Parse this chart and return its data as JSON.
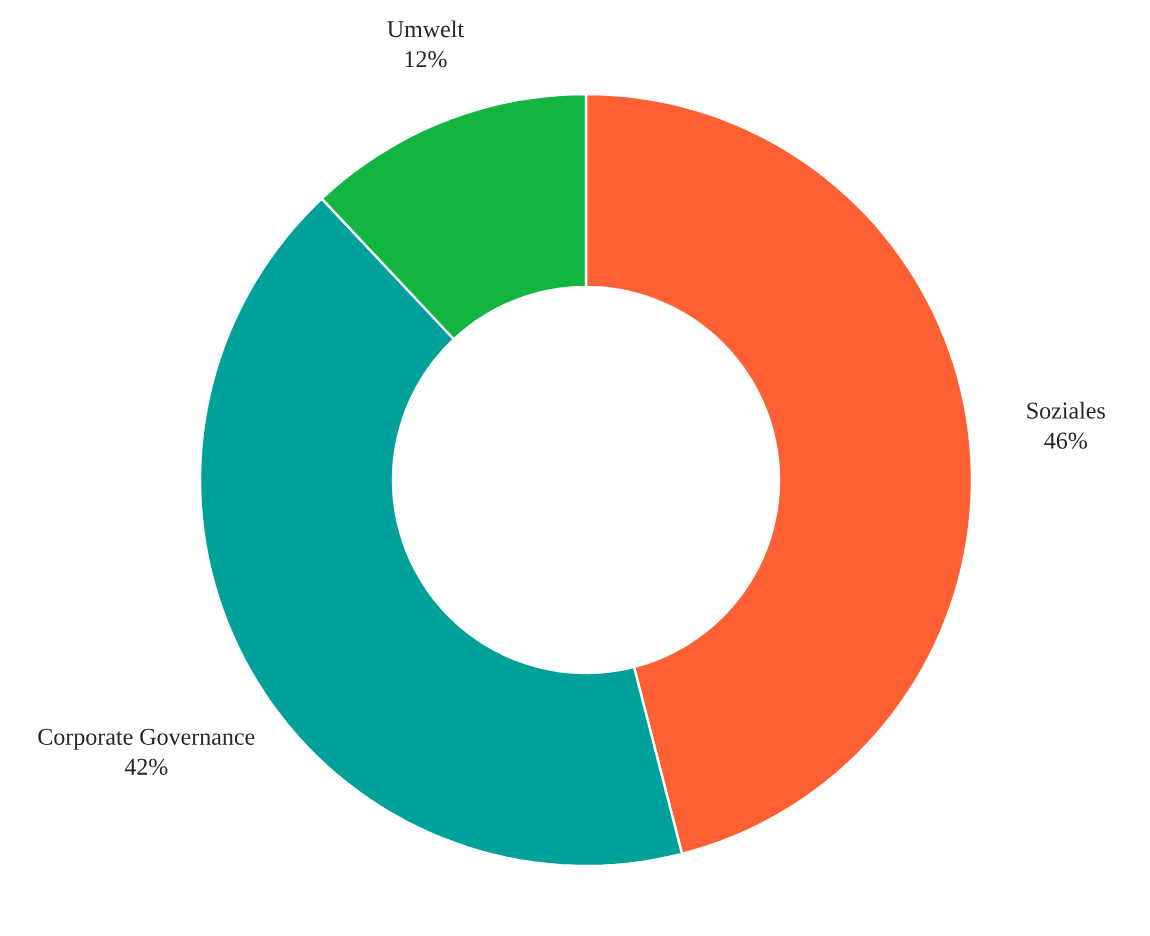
{
  "chart_data": {
    "type": "donut",
    "categories": [
      "Soziales",
      "Corporate Governance",
      "Umwelt"
    ],
    "values": [
      46,
      42,
      12
    ],
    "colors": [
      "#ff6033",
      "#00a19a",
      "#12b53f"
    ],
    "value_labels": [
      "46%",
      "42%",
      "12%"
    ]
  }
}
